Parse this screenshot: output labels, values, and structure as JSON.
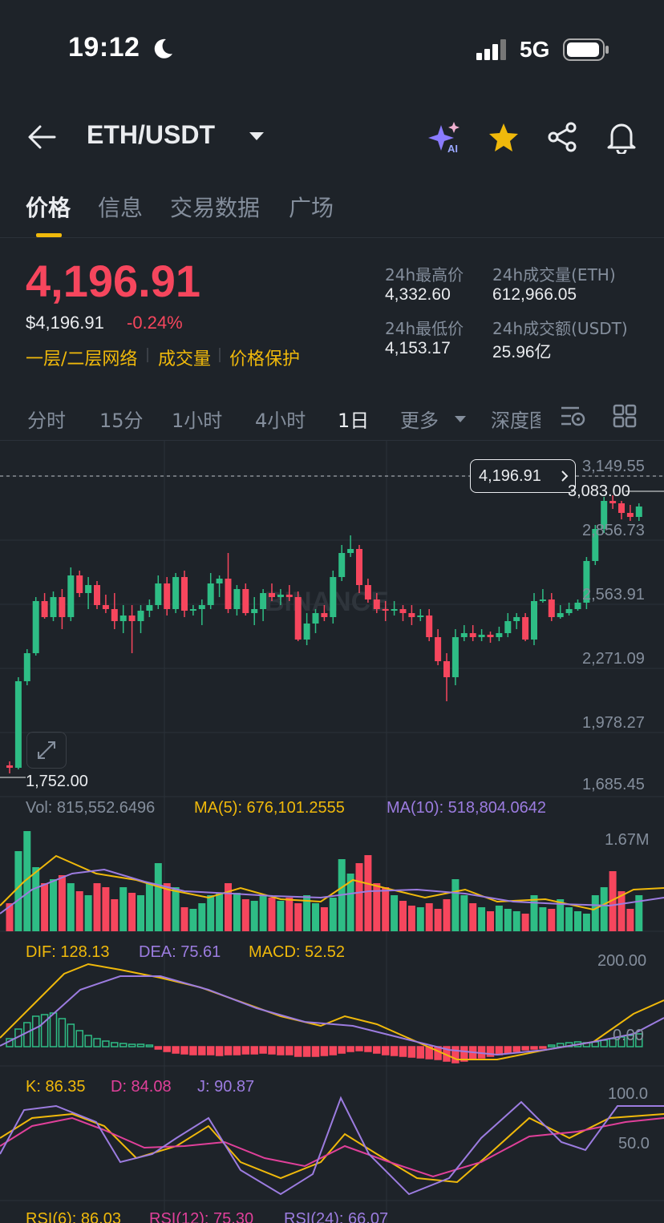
{
  "status": {
    "time": "19:12",
    "network": "5G"
  },
  "header": {
    "pair": "ETH/USDT"
  },
  "tabs": [
    "价格",
    "信息",
    "交易数据",
    "广场"
  ],
  "ticker": {
    "last": "4,196.91",
    "usd": "$4,196.91",
    "change": "-0.24%",
    "tags": [
      "一层/二层网络",
      "成交量",
      "价格保护"
    ],
    "high_label": "24h最高价",
    "high": "4,332.60",
    "low_label": "24h最低价",
    "low": "4,153.17",
    "vol_label": "24h成交量(ETH)",
    "vol": "612,966.05",
    "amt_label": "24h成交额(USDT)",
    "amt": "25.96亿"
  },
  "timeframes": [
    "分时",
    "15分",
    "1小时",
    "4小时",
    "1日",
    "更多",
    "深度图"
  ],
  "chart": {
    "watermark": "BINANCE",
    "price_ticks": [
      "3,149.55",
      "2,856.73",
      "2,563.91",
      "2,271.09",
      "1,978.27",
      "1,685.45"
    ],
    "last_marker": "4,196.91",
    "high_marker": "3,083.00",
    "low_marker": "1,752.00",
    "vol_label": "Vol: 815,552.6496",
    "ma5_label": "MA(5): 676,101.2555",
    "ma10_label": "MA(10): 518,804.0642",
    "vol_tick": "1.67M",
    "dif_label": "DIF: 128.13",
    "dea_label": "DEA: 75.61",
    "macd_label": "MACD: 52.52",
    "macd_ticks": [
      "200.00",
      "0.00"
    ],
    "k_label": "K: 86.35",
    "d_label": "D: 84.08",
    "j_label": "J: 90.87",
    "kdj_ticks": [
      "100.0",
      "50.0"
    ],
    "rsi6_label": "RSI(6): 86.03",
    "rsi12_label": "RSI(12): 75.30",
    "rsi24_label": "RSI(24): 66.07"
  },
  "colors": {
    "up": "#2ebd85",
    "down": "#f6465d",
    "accent": "#f0b90b",
    "bg": "#1e2329"
  }
}
